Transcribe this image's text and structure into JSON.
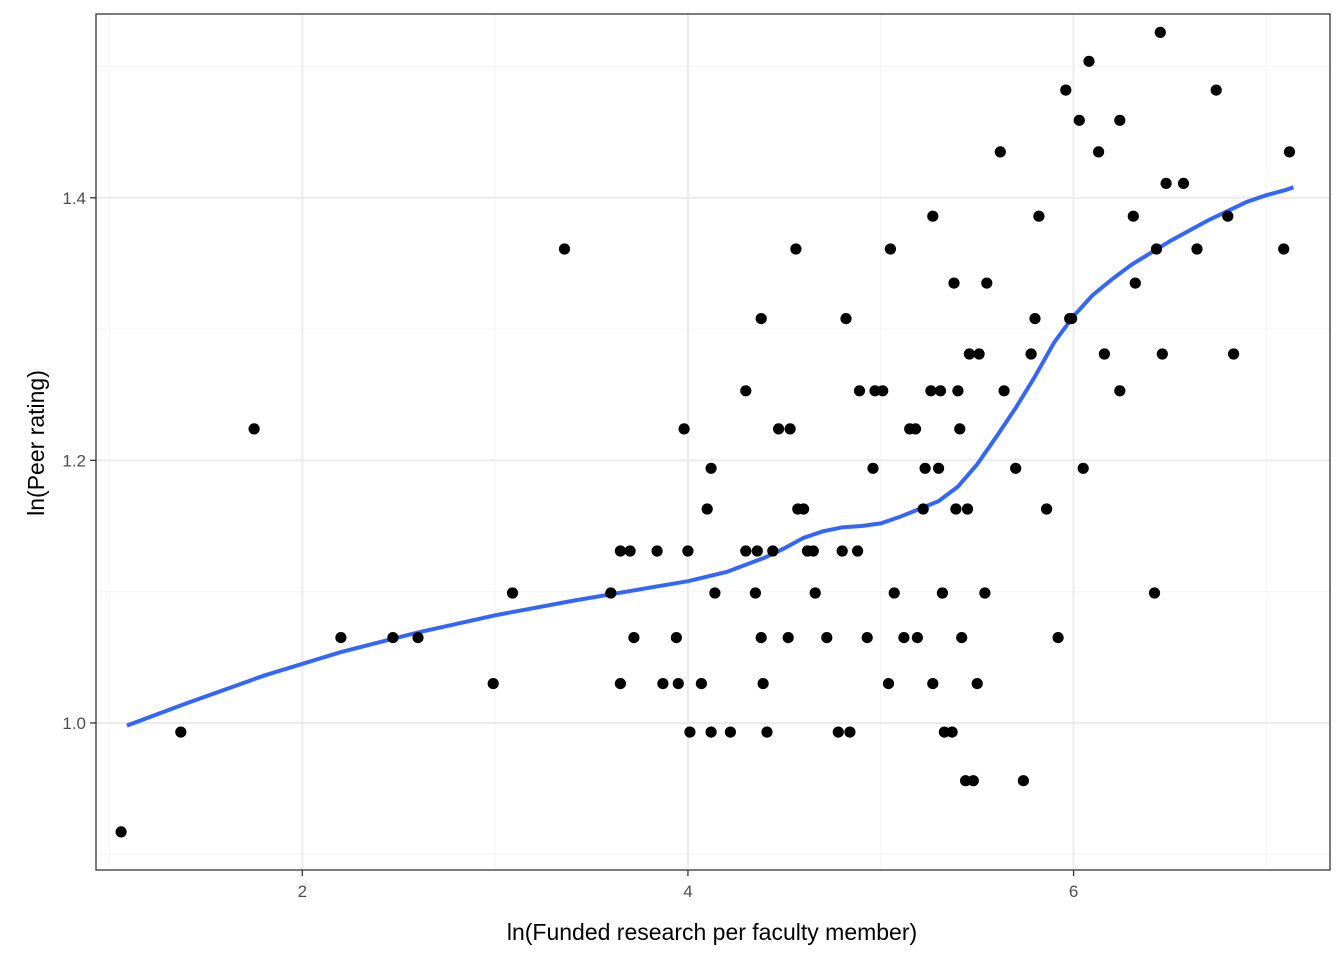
{
  "chart_data": {
    "type": "scatter",
    "title": "",
    "xlabel": "ln(Funded research per faculty member)",
    "ylabel": "ln(Peer rating)",
    "xlim": [
      0.93,
      7.33
    ],
    "ylim": [
      0.888,
      1.54
    ],
    "x_ticks": [
      2,
      4,
      6
    ],
    "x_tick_labels": [
      "2",
      "4",
      "6"
    ],
    "x_minor_ticks": [
      1,
      3,
      5,
      7
    ],
    "y_ticks": [
      1.0,
      1.2,
      1.4
    ],
    "y_tick_labels": [
      "1.0",
      "1.2",
      "1.4"
    ],
    "y_minor_ticks": [
      0.9,
      1.1,
      1.3,
      1.5
    ],
    "grid": true,
    "legend": "none",
    "colors": {
      "points": "#000000",
      "smooth_line": "#3366FF",
      "grid_major": "#EBEBEB",
      "grid_minor": "#F5F5F5",
      "panel_border": "#333333"
    },
    "series": [
      {
        "type": "scatter",
        "points": [
          [
            1.06,
            0.917
          ],
          [
            1.37,
            0.993
          ],
          [
            1.75,
            1.224
          ],
          [
            2.2,
            1.065
          ],
          [
            2.47,
            1.065
          ],
          [
            2.6,
            1.065
          ],
          [
            2.99,
            1.03
          ],
          [
            3.09,
            1.099
          ],
          [
            3.36,
            1.361
          ],
          [
            3.6,
            1.099
          ],
          [
            3.65,
            1.03
          ],
          [
            3.65,
            1.131
          ],
          [
            3.7,
            1.131
          ],
          [
            3.72,
            1.065
          ],
          [
            3.84,
            1.131
          ],
          [
            3.87,
            1.03
          ],
          [
            3.94,
            1.065
          ],
          [
            3.95,
            1.03
          ],
          [
            3.98,
            1.224
          ],
          [
            4.0,
            1.131
          ],
          [
            4.01,
            0.993
          ],
          [
            4.07,
            1.03
          ],
          [
            4.1,
            1.163
          ],
          [
            4.12,
            1.194
          ],
          [
            4.12,
            0.993
          ],
          [
            4.14,
            1.099
          ],
          [
            4.22,
            0.993
          ],
          [
            4.3,
            1.253
          ],
          [
            4.3,
            1.131
          ],
          [
            4.35,
            1.099
          ],
          [
            4.36,
            1.131
          ],
          [
            4.38,
            1.308
          ],
          [
            4.38,
            1.065
          ],
          [
            4.39,
            1.03
          ],
          [
            4.41,
            0.993
          ],
          [
            4.44,
            1.131
          ],
          [
            4.47,
            1.224
          ],
          [
            4.52,
            1.065
          ],
          [
            4.53,
            1.224
          ],
          [
            4.56,
            1.361
          ],
          [
            4.57,
            1.163
          ],
          [
            4.6,
            1.163
          ],
          [
            4.62,
            1.131
          ],
          [
            4.65,
            1.131
          ],
          [
            4.66,
            1.099
          ],
          [
            4.72,
            1.065
          ],
          [
            4.78,
            0.993
          ],
          [
            4.8,
            1.131
          ],
          [
            4.82,
            1.308
          ],
          [
            4.84,
            0.993
          ],
          [
            4.88,
            1.131
          ],
          [
            4.89,
            1.253
          ],
          [
            4.93,
            1.065
          ],
          [
            4.96,
            1.194
          ],
          [
            4.97,
            1.253
          ],
          [
            5.01,
            1.253
          ],
          [
            5.04,
            1.03
          ],
          [
            5.05,
            1.361
          ],
          [
            5.07,
            1.099
          ],
          [
            5.12,
            1.065
          ],
          [
            5.15,
            1.224
          ],
          [
            5.18,
            1.224
          ],
          [
            5.19,
            1.065
          ],
          [
            5.22,
            1.163
          ],
          [
            5.23,
            1.194
          ],
          [
            5.26,
            1.253
          ],
          [
            5.27,
            1.386
          ],
          [
            5.27,
            1.03
          ],
          [
            5.3,
            1.194
          ],
          [
            5.31,
            1.253
          ],
          [
            5.32,
            1.099
          ],
          [
            5.33,
            0.993
          ],
          [
            5.37,
            0.993
          ],
          [
            5.38,
            1.335
          ],
          [
            5.39,
            1.163
          ],
          [
            5.4,
            1.253
          ],
          [
            5.41,
            1.224
          ],
          [
            5.42,
            1.065
          ],
          [
            5.44,
            0.956
          ],
          [
            5.45,
            1.163
          ],
          [
            5.46,
            1.281
          ],
          [
            5.48,
            0.956
          ],
          [
            5.5,
            1.03
          ],
          [
            5.51,
            1.281
          ],
          [
            5.54,
            1.099
          ],
          [
            5.55,
            1.335
          ],
          [
            5.62,
            1.435
          ],
          [
            5.64,
            1.253
          ],
          [
            5.7,
            1.194
          ],
          [
            5.74,
            0.956
          ],
          [
            5.78,
            1.281
          ],
          [
            5.8,
            1.308
          ],
          [
            5.82,
            1.386
          ],
          [
            5.86,
            1.163
          ],
          [
            5.92,
            1.065
          ],
          [
            5.96,
            1.482
          ],
          [
            5.98,
            1.308
          ],
          [
            5.99,
            1.308
          ],
          [
            6.03,
            1.459
          ],
          [
            6.05,
            1.194
          ],
          [
            6.08,
            1.504
          ],
          [
            6.13,
            1.435
          ],
          [
            6.16,
            1.281
          ],
          [
            6.24,
            1.459
          ],
          [
            6.24,
            1.253
          ],
          [
            6.31,
            1.386
          ],
          [
            6.32,
            1.335
          ],
          [
            6.42,
            1.099
          ],
          [
            6.43,
            1.361
          ],
          [
            6.45,
            1.526
          ],
          [
            6.46,
            1.281
          ],
          [
            6.48,
            1.411
          ],
          [
            6.57,
            1.411
          ],
          [
            6.64,
            1.361
          ],
          [
            6.74,
            1.482
          ],
          [
            6.8,
            1.386
          ],
          [
            6.83,
            1.281
          ],
          [
            7.09,
            1.361
          ],
          [
            7.12,
            1.435
          ]
        ]
      },
      {
        "type": "line",
        "points": [
          [
            1.09,
            0.998
          ],
          [
            1.4,
            1.015
          ],
          [
            1.8,
            1.036
          ],
          [
            2.2,
            1.054
          ],
          [
            2.6,
            1.069
          ],
          [
            3.0,
            1.082
          ],
          [
            3.4,
            1.093
          ],
          [
            3.8,
            1.103
          ],
          [
            4.0,
            1.108
          ],
          [
            4.2,
            1.115
          ],
          [
            4.4,
            1.126
          ],
          [
            4.5,
            1.133
          ],
          [
            4.6,
            1.141
          ],
          [
            4.7,
            1.146
          ],
          [
            4.8,
            1.149
          ],
          [
            4.9,
            1.15
          ],
          [
            5.0,
            1.152
          ],
          [
            5.1,
            1.157
          ],
          [
            5.2,
            1.163
          ],
          [
            5.3,
            1.169
          ],
          [
            5.4,
            1.18
          ],
          [
            5.5,
            1.197
          ],
          [
            5.6,
            1.218
          ],
          [
            5.7,
            1.24
          ],
          [
            5.8,
            1.264
          ],
          [
            5.9,
            1.29
          ],
          [
            6.0,
            1.31
          ],
          [
            6.1,
            1.326
          ],
          [
            6.2,
            1.338
          ],
          [
            6.3,
            1.349
          ],
          [
            6.4,
            1.358
          ],
          [
            6.5,
            1.367
          ],
          [
            6.6,
            1.375
          ],
          [
            6.7,
            1.383
          ],
          [
            6.8,
            1.39
          ],
          [
            6.9,
            1.397
          ],
          [
            7.0,
            1.402
          ],
          [
            7.1,
            1.406
          ],
          [
            7.14,
            1.408
          ]
        ]
      }
    ]
  }
}
